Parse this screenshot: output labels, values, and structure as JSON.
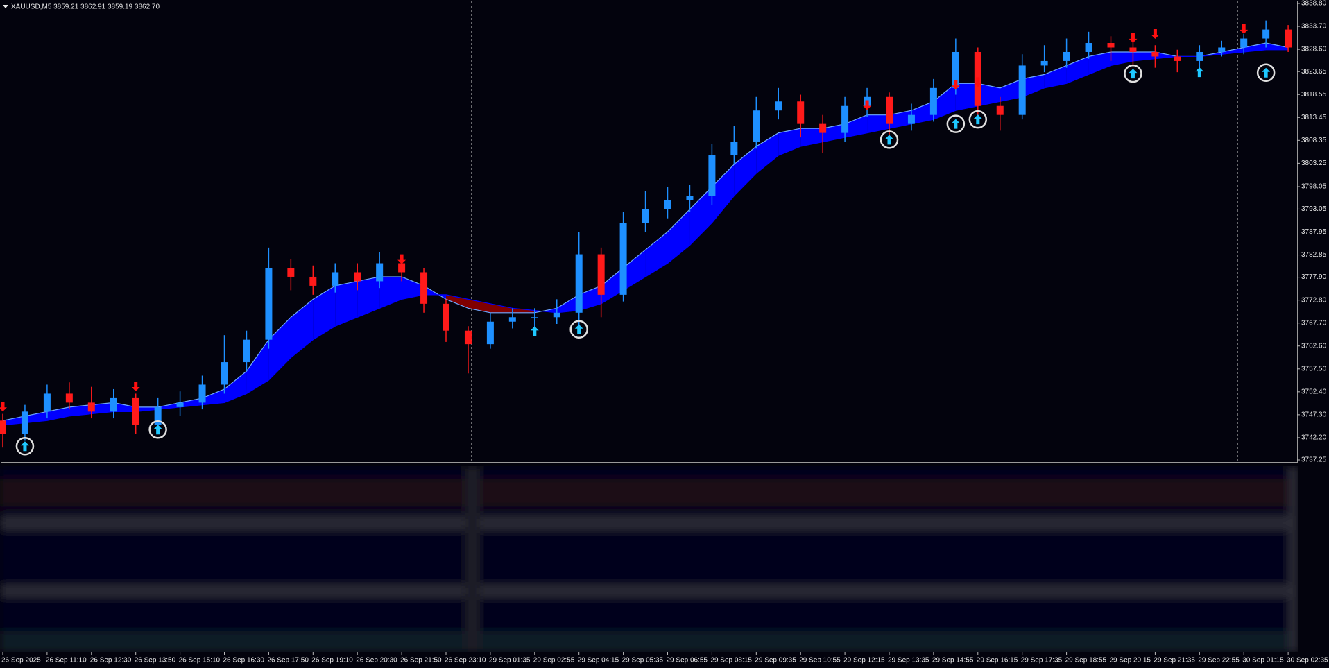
{
  "chart_data": {
    "type": "candlestick",
    "title": "XAUUSD,M5 3859.21 3862.91 3859.19 3862.70",
    "categories": [
      "26 Sep 2025",
      null,
      "26 Sep 11:10",
      null,
      "26 Sep 12:30",
      null,
      "26 Sep 13:50",
      null,
      "26 Sep 15:10",
      null,
      "26 Sep 16:30",
      null,
      "26 Sep 17:50",
      null,
      "26 Sep 19:10",
      null,
      "26 Sep 20:30",
      null,
      "26 Sep 21:50",
      null,
      "26 Sep 23:10",
      null,
      "29 Sep 01:35",
      null,
      "29 Sep 02:55",
      null,
      "29 Sep 04:15",
      null,
      "29 Sep 05:35",
      null,
      "29 Sep 06:55",
      null,
      "29 Sep 08:15",
      null,
      "29 Sep 09:35",
      null,
      "29 Sep 10:55",
      null,
      "29 Sep 12:15",
      null,
      "29 Sep 13:35",
      null,
      "29 Sep 14:55",
      null,
      "29 Sep 16:15",
      null,
      "29 Sep 17:35",
      null,
      "29 Sep 18:55",
      null,
      "29 Sep 20:15",
      null,
      "29 Sep 21:35",
      null,
      "29 Sep 22:55",
      null,
      "30 Sep 01:15",
      null,
      "30 Sep 02:35"
    ],
    "open": [
      3746,
      3743,
      3748,
      3752,
      3750,
      3748,
      3751,
      3745,
      3749,
      3750,
      3754,
      3759,
      3764,
      3780,
      3778,
      3776,
      3779,
      3777,
      3781,
      3779,
      3772,
      3766,
      3763,
      3768,
      3769,
      3769,
      3770,
      3783,
      3774,
      3790,
      3793,
      3795,
      3796,
      3805,
      3808,
      3815,
      3817,
      3812,
      3810,
      3816,
      3818,
      3812,
      3814,
      3820,
      3828,
      3816,
      3814,
      3825,
      3826,
      3828,
      3830,
      3829,
      3828,
      3827,
      3826,
      3828,
      3829,
      3831,
      3833
    ],
    "high": [
      3747.5,
      3749.5,
      3754,
      3754.5,
      3753.5,
      3753,
      3752,
      3751,
      3752.5,
      3756,
      3765,
      3766,
      3784.5,
      3782,
      3780.5,
      3781,
      3781,
      3783.5,
      3782.5,
      3780,
      3773,
      3767,
      3770,
      3771,
      3771,
      3773,
      3788,
      3784.5,
      3792.5,
      3797,
      3798,
      3798.5,
      3807.5,
      3811.5,
      3818,
      3820,
      3818.5,
      3814,
      3818,
      3820,
      3819,
      3816.5,
      3822,
      3831,
      3829,
      3818,
      3827.5,
      3829.5,
      3831,
      3832.5,
      3831.5,
      3830.5,
      3829.5,
      3828.5,
      3829.5,
      3830.5,
      3832,
      3835,
      3834
    ],
    "low": [
      3740,
      3741.5,
      3746.5,
      3748.5,
      3746.5,
      3746.5,
      3743,
      3744,
      3747,
      3748.5,
      3752,
      3757,
      3762,
      3775,
      3774,
      3774.5,
      3775,
      3775.5,
      3777,
      3770,
      3763.5,
      3756.5,
      3762,
      3766.5,
      3765.5,
      3767.5,
      3767,
      3769,
      3772.5,
      3788,
      3791,
      3792.5,
      3794,
      3803,
      3806.5,
      3813,
      3809,
      3805.5,
      3808,
      3813.5,
      3809,
      3810.5,
      3812.5,
      3818.5,
      3812,
      3810.5,
      3813,
      3823.5,
      3824.5,
      3826.5,
      3826,
      3825,
      3824.5,
      3823.5,
      3824.5,
      3827,
      3827.5,
      3829,
      3828
    ],
    "close": [
      3743,
      3748,
      3752,
      3750,
      3748,
      3751,
      3745,
      3749,
      3750,
      3754,
      3759,
      3764,
      3780,
      3778,
      3776,
      3779,
      3777,
      3781,
      3779,
      3772,
      3766,
      3763,
      3768,
      3769,
      3769,
      3770,
      3783,
      3774,
      3790,
      3793,
      3795,
      3796,
      3805,
      3808,
      3815,
      3817,
      3812,
      3810,
      3816,
      3818,
      3812,
      3814,
      3820,
      3828,
      3816,
      3814,
      3825,
      3826,
      3828,
      3830,
      3829,
      3828,
      3827,
      3826,
      3828,
      3829,
      3831,
      3833,
      3829
    ],
    "up_color": "#1e90ff",
    "down_color": "#ff1a1a",
    "bands": {
      "fast": [
        3746,
        3747,
        3748,
        3749,
        3749.5,
        3750,
        3749,
        3749,
        3750,
        3751,
        3753,
        3757,
        3764,
        3769,
        3773,
        3776,
        3777,
        3778,
        3778,
        3776,
        3773,
        3771,
        3770,
        3770,
        3770,
        3771,
        3774,
        3776,
        3780,
        3784,
        3788,
        3793,
        3798,
        3803,
        3807,
        3810,
        3811,
        3811,
        3812,
        3814,
        3814,
        3815,
        3817,
        3821,
        3821,
        3820,
        3822,
        3823,
        3825,
        3827,
        3828,
        3828,
        3828,
        3827,
        3827,
        3828,
        3829,
        3830,
        3829
      ],
      "slow": [
        3745,
        3745.5,
        3746,
        3747,
        3747.5,
        3748,
        3748,
        3748.5,
        3749,
        3749.5,
        3750,
        3752,
        3755,
        3760,
        3764,
        3767,
        3769,
        3771,
        3773,
        3774,
        3774,
        3773,
        3772,
        3771,
        3770.5,
        3770,
        3770.5,
        3772,
        3775,
        3778,
        3781,
        3785,
        3790,
        3796,
        3801,
        3805,
        3807,
        3808,
        3809,
        3810,
        3811,
        3812,
        3813,
        3815,
        3816,
        3817,
        3818,
        3820,
        3821,
        3823,
        3825,
        3826,
        3826.5,
        3827,
        3827,
        3827.5,
        3828,
        3828.5,
        3828.5
      ],
      "line_color": "#6fa8ff",
      "bull_fill": "#0000ff",
      "bear_fill": "#800000"
    },
    "buy_signals_circled": {
      "x": [
        1,
        7,
        26,
        40,
        43,
        44,
        51,
        57
      ],
      "values": [
        3740.3,
        3744.0,
        3766.3,
        3808.5,
        3812.0,
        3813.0,
        3823.2,
        3823.4
      ],
      "color": "#1ec8ff"
    },
    "buy_signals": {
      "x": [
        24,
        54
      ],
      "values": [
        3765.9,
        3823.5
      ],
      "color": "#1ec8ff"
    },
    "sell_signals": {
      "x": [
        0,
        6,
        18,
        39,
        43,
        44,
        51,
        52,
        56
      ],
      "values": [
        3749.1,
        3753.6,
        3781.9,
        3816.2,
        3820.7,
        3821.3,
        3831.1,
        3832.0,
        3833.1
      ],
      "color": "#ff1010"
    },
    "ylim": [
      3737.25,
      3838.8
    ],
    "yticks": [
      {
        "value": 3838.8,
        "label": "3838.80"
      },
      {
        "value": 3833.7,
        "label": "3833.70"
      },
      {
        "value": 3828.6,
        "label": "3828.60"
      },
      {
        "value": 3823.65,
        "label": "3823.65"
      },
      {
        "value": 3818.55,
        "label": "3818.55"
      },
      {
        "value": 3813.45,
        "label": "3813.45"
      },
      {
        "value": 3808.35,
        "label": "3808.35"
      },
      {
        "value": 3803.25,
        "label": "3803.25"
      },
      {
        "value": 3798.05,
        "label": "3798.05"
      },
      {
        "value": 3793.05,
        "label": "3793.05"
      },
      {
        "value": 3787.95,
        "label": "3787.95"
      },
      {
        "value": 3782.85,
        "label": "3782.85"
      },
      {
        "value": 3777.9,
        "label": "3777.90"
      },
      {
        "value": 3772.8,
        "label": "3772.80"
      },
      {
        "value": 3767.7,
        "label": "3767.70"
      },
      {
        "value": 3762.6,
        "label": "3762.60"
      },
      {
        "value": 3757.5,
        "label": "3757.50"
      },
      {
        "value": 3752.4,
        "label": "3752.40"
      },
      {
        "value": 3747.3,
        "label": "3747.30"
      },
      {
        "value": 3742.2,
        "label": "3742.20"
      },
      {
        "value": 3737.25,
        "label": "3737.25"
      }
    ],
    "grid": false
  }
}
